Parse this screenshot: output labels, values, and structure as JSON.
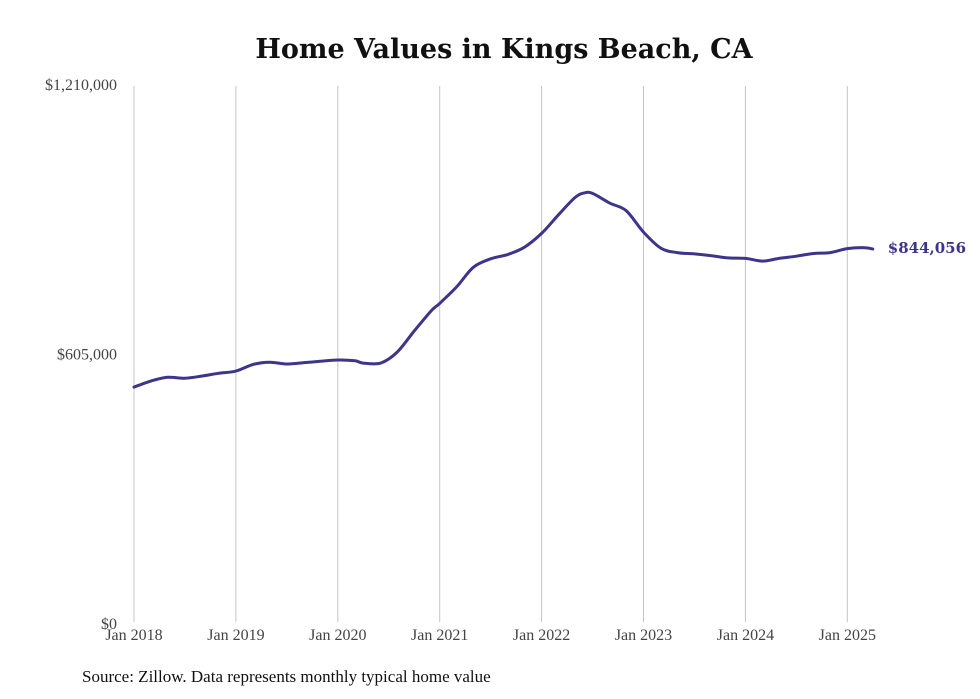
{
  "chart_data": {
    "type": "line",
    "title": "Home Values in Kings Beach, CA",
    "xlabel": "",
    "ylabel": "",
    "ylim": [
      0,
      1210000
    ],
    "y_ticks": [
      {
        "value": 0,
        "label": "$0"
      },
      {
        "value": 605000,
        "label": "$605,000"
      },
      {
        "value": 1210000,
        "label": "$1,210,000"
      }
    ],
    "x_ticks": [
      {
        "value": 2018.0,
        "label": "Jan 2018"
      },
      {
        "value": 2019.0,
        "label": "Jan 2019"
      },
      {
        "value": 2020.0,
        "label": "Jan 2020"
      },
      {
        "value": 2021.0,
        "label": "Jan 2021"
      },
      {
        "value": 2022.0,
        "label": "Jan 2022"
      },
      {
        "value": 2023.0,
        "label": "Jan 2023"
      },
      {
        "value": 2024.0,
        "label": "Jan 2024"
      },
      {
        "value": 2025.0,
        "label": "Jan 2025"
      }
    ],
    "grid": {
      "vertical": true,
      "horizontal": false
    },
    "legend": "none",
    "line_color": "#3d3589",
    "end_label": "$844,056",
    "x": [
      2018.0,
      2018.17,
      2018.33,
      2018.5,
      2018.67,
      2018.83,
      2019.0,
      2019.17,
      2019.33,
      2019.5,
      2019.67,
      2019.83,
      2020.0,
      2020.17,
      2020.25,
      2020.42,
      2020.58,
      2020.75,
      2020.92,
      2021.0,
      2021.17,
      2021.33,
      2021.5,
      2021.67,
      2021.83,
      2022.0,
      2022.17,
      2022.33,
      2022.42,
      2022.5,
      2022.67,
      2022.83,
      2023.0,
      2023.17,
      2023.33,
      2023.5,
      2023.67,
      2023.83,
      2024.0,
      2024.17,
      2024.33,
      2024.5,
      2024.67,
      2024.83,
      2025.0,
      2025.17,
      2025.25
    ],
    "series": [
      {
        "values": [
          534000,
          548000,
          556000,
          554000,
          559000,
          565000,
          570000,
          585000,
          590000,
          586000,
          589000,
          592000,
          595000,
          593000,
          588000,
          588000,
          612000,
          660000,
          706000,
          722000,
          760000,
          803000,
          822000,
          832000,
          848000,
          879000,
          922000,
          960000,
          970000,
          969000,
          947000,
          930000,
          882000,
          846000,
          836000,
          833000,
          829000,
          824000,
          823000,
          817000,
          823000,
          828000,
          834000,
          836000,
          845000,
          847000,
          844056
        ]
      }
    ]
  },
  "source": "Source: Zillow. Data represents monthly typical home value"
}
